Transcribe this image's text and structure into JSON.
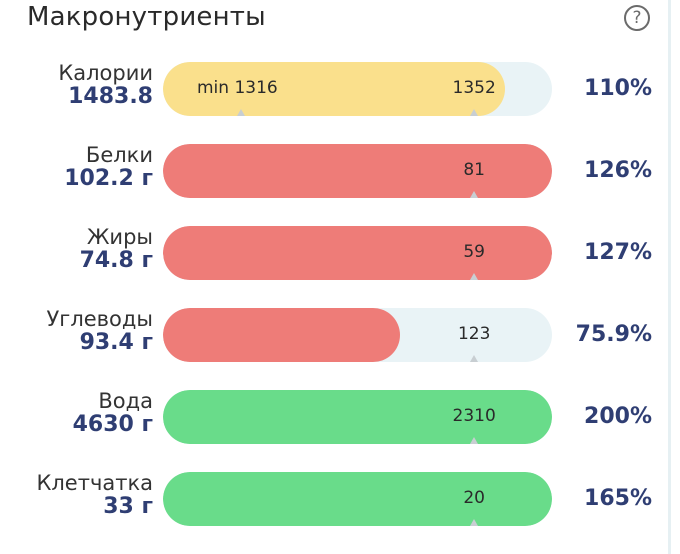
{
  "header": {
    "title": "Макронутриенты",
    "help_glyph": "?"
  },
  "colors": {
    "yellow": "#fae08c",
    "red": "#ee7c78",
    "green": "#69dc8a",
    "track": "#e9f3f6",
    "value": "#2f3e73"
  },
  "rows": [
    {
      "name": "Калории",
      "value": "1483.8",
      "min_label": "min 1316",
      "target": "1352",
      "percent": "110%",
      "fill_fraction": 0.88,
      "marker_fraction": 0.8,
      "color": "yellow"
    },
    {
      "name": "Белки",
      "value": "102.2 г",
      "target": "81",
      "percent": "126%",
      "fill_fraction": 1.0,
      "marker_fraction": 0.8,
      "color": "red"
    },
    {
      "name": "Жиры",
      "value": "74.8 г",
      "target": "59",
      "percent": "127%",
      "fill_fraction": 1.0,
      "marker_fraction": 0.8,
      "color": "red"
    },
    {
      "name": "Углеводы",
      "value": "93.4 г",
      "target": "123",
      "percent": "75.9%",
      "fill_fraction": 0.61,
      "marker_fraction": 0.8,
      "color": "red"
    },
    {
      "name": "Вода",
      "value": "4630 г",
      "target": "2310",
      "percent": "200%",
      "fill_fraction": 1.0,
      "marker_fraction": 0.8,
      "color": "green"
    },
    {
      "name": "Клетчатка",
      "value": "33 г",
      "target": "20",
      "percent": "165%",
      "fill_fraction": 1.0,
      "marker_fraction": 0.8,
      "color": "green"
    }
  ]
}
